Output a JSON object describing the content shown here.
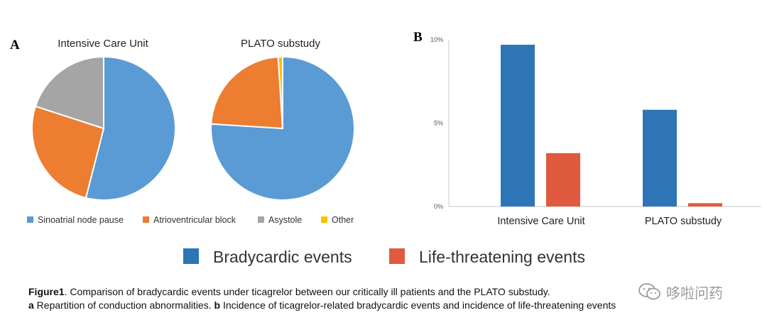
{
  "chart_data": [
    {
      "type": "pie",
      "panel": "A",
      "title": "Intensive Care Unit",
      "slices": [
        {
          "label": "Sinoatrial node pause",
          "value": 54,
          "color": "#5b9bd5"
        },
        {
          "label": "Atrioventricular block",
          "value": 26,
          "color": "#ed7d31"
        },
        {
          "label": "Asystole",
          "value": 20,
          "color": "#a5a5a5"
        },
        {
          "label": "Other",
          "value": 0,
          "color": "#ffc000"
        }
      ]
    },
    {
      "type": "pie",
      "panel": "A",
      "title": "PLATO substudy",
      "slices": [
        {
          "label": "Sinoatrial node pause",
          "value": 76,
          "color": "#5b9bd5"
        },
        {
          "label": "Atrioventricular block",
          "value": 23,
          "color": "#ed7d31"
        },
        {
          "label": "Asystole",
          "value": 0,
          "color": "#a5a5a5"
        },
        {
          "label": "Other",
          "value": 1,
          "color": "#ffc000"
        }
      ]
    },
    {
      "type": "bar",
      "panel": "B",
      "categories": [
        "Intensive Care Unit",
        "PLATO substudy"
      ],
      "series": [
        {
          "name": "Bradycardic events",
          "values": [
            9.7,
            5.8
          ],
          "color": "#2e75b6"
        },
        {
          "name": "Life-threatening events",
          "values": [
            3.2,
            0.2
          ],
          "color": "#e05a3f"
        }
      ],
      "ylim": [
        0,
        10
      ],
      "yticks": [
        0,
        5,
        10
      ],
      "ytick_labels": [
        "0%",
        "5%",
        "10%"
      ]
    }
  ],
  "panels": {
    "a_letter": "A",
    "b_letter": "B"
  },
  "pie_legend": [
    "Sinoatrial node pause",
    "Atrioventricular block",
    "Asystole",
    "Other"
  ],
  "caption": {
    "line1_bold": "Figure1",
    "line1_text": ". Comparison of bradycardic events under ticagrelor between our critically ill patients and the PLATO substudy.",
    "line2_a": "a",
    "line2_a_text": " Repartition of conduction abnormalities. ",
    "line2_b": "b",
    "line2_b_text": " Incidence of ticagrelor-related bradycardic events and incidence of life-threatening events"
  },
  "watermark": {
    "text": "哆啦问药",
    "icon": "wechat-icon"
  }
}
